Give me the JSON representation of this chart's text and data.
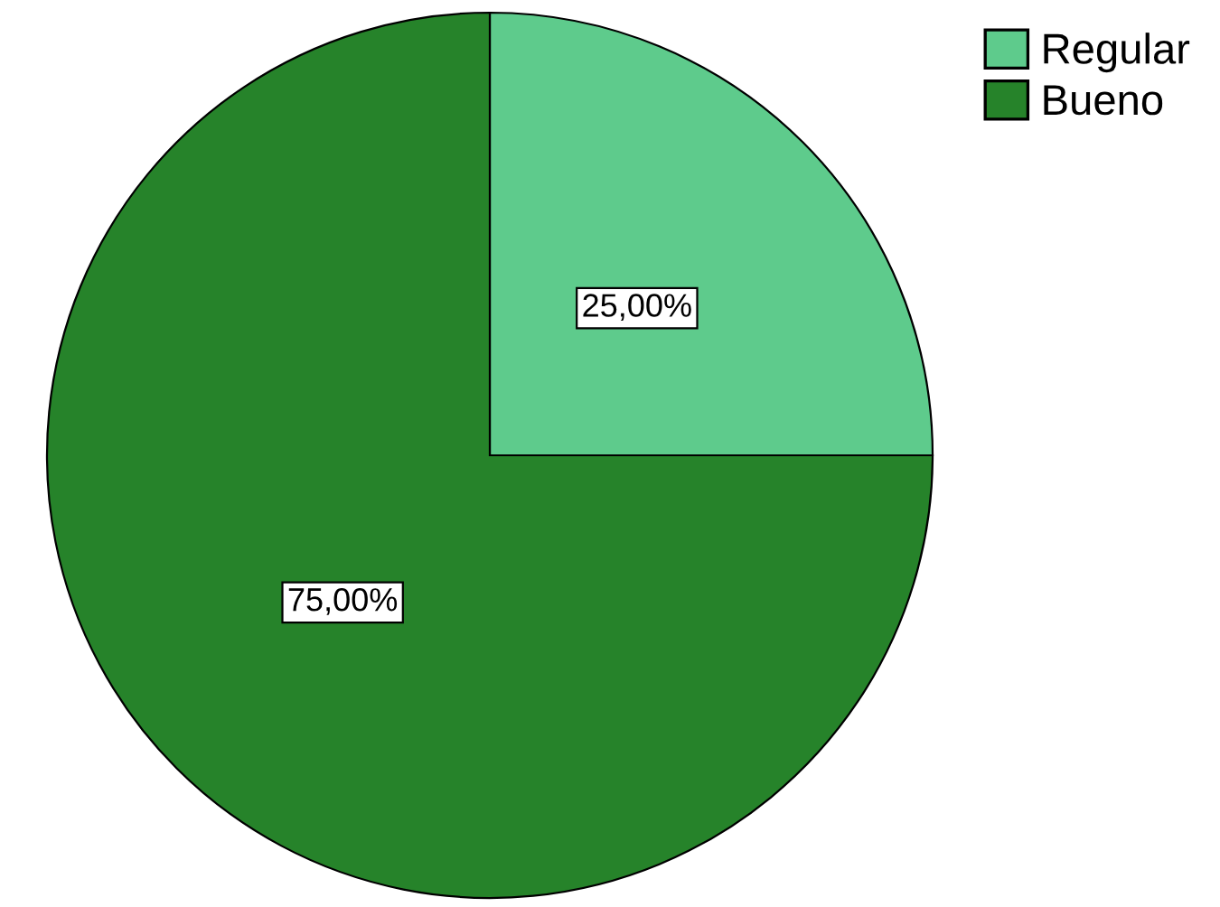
{
  "chart_data": {
    "type": "pie",
    "categories": [
      "Regular",
      "Bueno"
    ],
    "values": [
      25,
      75
    ],
    "colors": [
      "#5ecb8c",
      "#26832a"
    ],
    "value_labels": [
      "25,00%",
      "75,00%"
    ],
    "legend": "top right"
  }
}
